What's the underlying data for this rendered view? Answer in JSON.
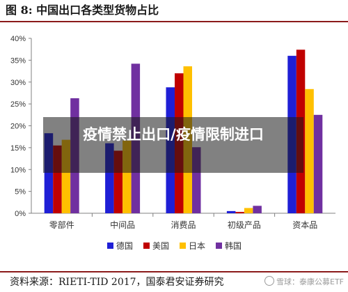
{
  "figure": {
    "title": "图 8:  中国出口各类型货物占比",
    "source": "资料来源：RIETI-TID 2017，国泰君安证券研究",
    "overlay_text": "疫情禁止出口/疫情限制进口",
    "watermark": "雪球：泰康公募ETF",
    "rule_color": "#8b1a1a"
  },
  "chart_data": {
    "type": "bar",
    "categories": [
      "零部件",
      "中间品",
      "消费品",
      "初级产品",
      "资本品"
    ],
    "series": [
      {
        "name": "德国",
        "color": "#1f1fd6",
        "values": [
          18.3,
          16.0,
          28.8,
          0.5,
          36.0
        ]
      },
      {
        "name": "美国",
        "color": "#c00000",
        "values": [
          15.5,
          14.3,
          32.0,
          0.3,
          37.4
        ]
      },
      {
        "name": "日本",
        "color": "#ffc000",
        "values": [
          16.8,
          16.6,
          33.6,
          1.2,
          28.4
        ]
      },
      {
        "name": "韩国",
        "color": "#7030a0",
        "values": [
          26.3,
          34.2,
          15.1,
          1.7,
          22.5
        ]
      }
    ],
    "ylim": [
      0,
      40
    ],
    "yticks": [
      "0%",
      "5%",
      "10%",
      "15%",
      "20%",
      "25%",
      "30%",
      "35%",
      "40%"
    ],
    "ytick_values": [
      0,
      5,
      10,
      15,
      20,
      25,
      30,
      35,
      40
    ],
    "xlabel": "",
    "ylabel": "",
    "grid": false,
    "legend_position": "bottom"
  }
}
